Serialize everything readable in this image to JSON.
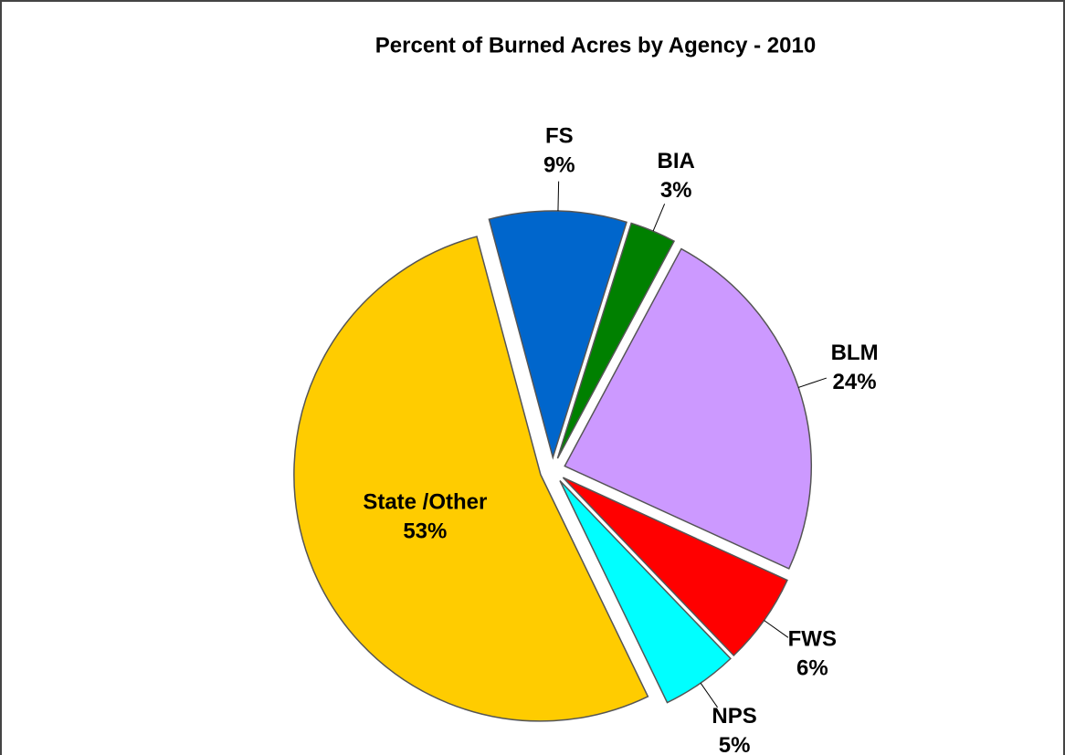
{
  "chart_data": {
    "type": "pie",
    "title": "Percent of Burned Acres by Agency - 2010",
    "categories": [
      "FS",
      "BIA",
      "BLM",
      "FWS",
      "NPS",
      "State /Other"
    ],
    "values": [
      9,
      3,
      24,
      6,
      5,
      53
    ],
    "value_labels": [
      "9%",
      "3%",
      "24%",
      "6%",
      "5%",
      "53%"
    ],
    "colors": [
      "#0066cc",
      "#008000",
      "#cc99ff",
      "#ff0000",
      "#00ffff",
      "#ffcc00"
    ]
  }
}
